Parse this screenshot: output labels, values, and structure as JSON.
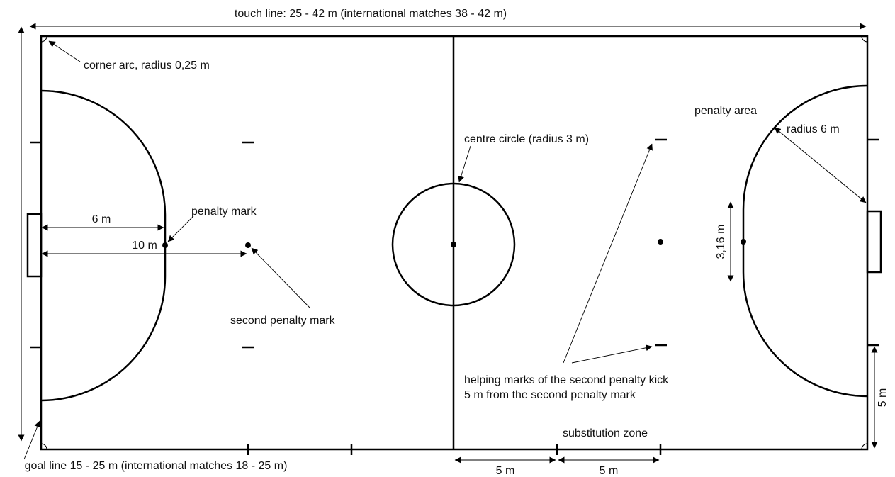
{
  "labels": {
    "touch_line": "touch line: 25 - 42 m (international matches 38 - 42 m)",
    "goal_line": "goal line 15 - 25 m (international matches 18 - 25 m)",
    "corner_arc": "corner arc, radius 0,25 m",
    "six_m": "6 m",
    "ten_m": "10 m",
    "penalty_mark": "penalty mark",
    "second_penalty_mark": "second penalty mark",
    "centre_circle": "centre circle (radius 3 m)",
    "penalty_area": "penalty area",
    "radius_6m": "radius 6 m",
    "goal_width": "3,16 m",
    "helping_marks_line1": "helping marks of the second penalty kick",
    "helping_marks_line2": "5 m from the second penalty mark",
    "substitution_zone": "substitution zone",
    "five_m_left": "5 m",
    "five_m_right": "5 m",
    "five_m_vertical": "5 m"
  }
}
